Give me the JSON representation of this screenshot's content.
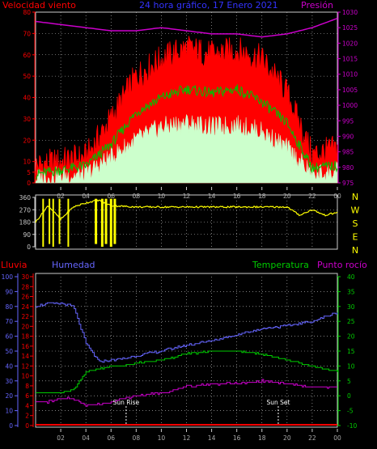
{
  "header": {
    "wind_label": "Velocidad viento",
    "title": "24 hora gráfico, 17 Enero 2021",
    "pressure_label": "Presión"
  },
  "lower_header": {
    "rain_label": "Lluvia",
    "humidity_label": "Humedad",
    "temperature_label": "Temperatura",
    "dewpoint_label": "Punto rocío"
  },
  "annotations": {
    "sunrise": "Sun Rise",
    "sunset": "Sun Set"
  },
  "compass": [
    "N",
    "W",
    "S",
    "E",
    "N"
  ],
  "colors": {
    "background": "#000000",
    "gust": "#ff0000",
    "wind_avg": "#00c000",
    "wind_min": "#ccffcc",
    "pressure": "#cc00cc",
    "direction": "#ffff00",
    "humidity": "#6666ff",
    "temperature": "#00cc00",
    "dewpoint": "#cc00cc",
    "rain": "#ff0000",
    "grid": "#cccccc"
  },
  "chart_data": [
    {
      "type": "line",
      "title": "24 hora gráfico, 17 Enero 2021",
      "x_ticks": [
        "02",
        "04",
        "06",
        "08",
        "10",
        "12",
        "14",
        "16",
        "18",
        "20",
        "22",
        "00"
      ],
      "y_left_ticks": [
        0,
        5,
        10,
        20,
        30,
        40,
        50,
        60,
        70,
        80
      ],
      "y_left_label": "Velocidad viento",
      "y_right_ticks": [
        975,
        980,
        985,
        990,
        995,
        1000,
        1005,
        1010,
        1015,
        1020,
        1025,
        1030
      ],
      "y_right_label": "Presión",
      "ylim_left": [
        0,
        80
      ],
      "ylim_right": [
        975,
        1030
      ],
      "x_hours": [
        0,
        2,
        4,
        6,
        8,
        10,
        12,
        14,
        16,
        18,
        20,
        22,
        24
      ],
      "series": [
        {
          "name": "gust",
          "values": [
            8,
            10,
            12,
            30,
            50,
            58,
            63,
            60,
            62,
            58,
            42,
            13,
            16
          ]
        },
        {
          "name": "average",
          "values": [
            4,
            6,
            8,
            18,
            33,
            40,
            44,
            42,
            44,
            38,
            28,
            7,
            8
          ]
        },
        {
          "name": "minimum",
          "values": [
            2,
            3,
            4,
            12,
            20,
            26,
            28,
            26,
            27,
            24,
            16,
            4,
            5
          ]
        },
        {
          "name": "pressure",
          "values": [
            1027,
            1026,
            1025,
            1024,
            1024,
            1025,
            1024,
            1023,
            1023,
            1022,
            1023,
            1025,
            1028
          ]
        }
      ],
      "grid": true
    },
    {
      "type": "line",
      "y_left_ticks": [
        0,
        90,
        180,
        270,
        360
      ],
      "y_right_ticks": [
        "N",
        "W",
        "S",
        "E",
        "N"
      ],
      "ylim": [
        0,
        360
      ],
      "x_hours": [
        0,
        1,
        2,
        3,
        4,
        5,
        6,
        8,
        10,
        12,
        14,
        16,
        18,
        19,
        20,
        21,
        22,
        23,
        24
      ],
      "series": [
        {
          "name": "direction",
          "values": [
            180,
            300,
            200,
            290,
            320,
            340,
            300,
            290,
            290,
            290,
            290,
            290,
            290,
            290,
            290,
            230,
            270,
            230,
            250
          ]
        }
      ],
      "grid": true
    },
    {
      "type": "line",
      "x_ticks": [
        "02",
        "04",
        "06",
        "08",
        "10",
        "12",
        "14",
        "16",
        "18",
        "20",
        "22",
        "00"
      ],
      "y_humidity_ticks": [
        0,
        10,
        20,
        30,
        40,
        50,
        60,
        70,
        80,
        90,
        100
      ],
      "y_rain_ticks": [
        0,
        2,
        4,
        6,
        8,
        10,
        12,
        14,
        16,
        18,
        20,
        22,
        24,
        26,
        28,
        30
      ],
      "y_temp_ticks": [
        -10,
        -5,
        0,
        5,
        10,
        15,
        20,
        25,
        30,
        35,
        40
      ],
      "ylim_humidity": [
        0,
        100
      ],
      "ylim_temp": [
        -10,
        40
      ],
      "x_hours": [
        0,
        1,
        2,
        3,
        4,
        5,
        6,
        7,
        8,
        10,
        12,
        14,
        16,
        18,
        20,
        22,
        24
      ],
      "series": [
        {
          "name": "humidity",
          "values": [
            80,
            82,
            82,
            80,
            55,
            43,
            44,
            45,
            47,
            50,
            54,
            57,
            61,
            65,
            67,
            70,
            76
          ]
        },
        {
          "name": "temperature",
          "values": [
            1,
            1,
            1,
            2,
            8,
            9,
            10,
            10,
            11,
            12,
            14,
            15,
            15,
            14,
            12,
            10,
            8
          ]
        },
        {
          "name": "dewpoint",
          "values": [
            -2,
            -2,
            -1,
            -1,
            -3,
            -3,
            -2,
            -1,
            0,
            1,
            3,
            4,
            4,
            5,
            4,
            3,
            3
          ]
        },
        {
          "name": "rain",
          "values": [
            0,
            0,
            0,
            0,
            0,
            0,
            0,
            0,
            0,
            0,
            0,
            0,
            0,
            0,
            0,
            0,
            0
          ]
        }
      ],
      "sunrise_hour": 7.2,
      "sunset_hour": 19.3,
      "grid": true
    }
  ]
}
